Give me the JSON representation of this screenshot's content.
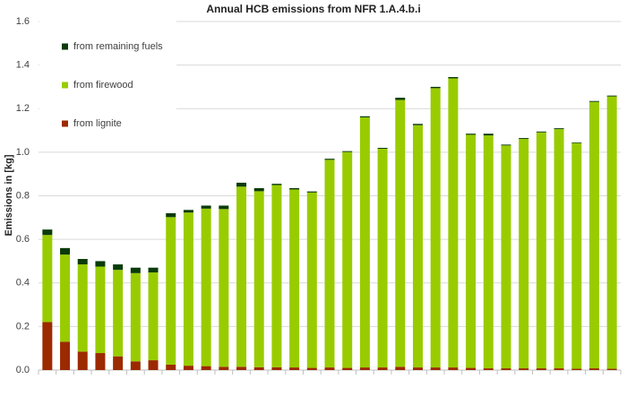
{
  "chart_data": {
    "type": "stacked-bar",
    "title": "Annual HCB emissions from NFR 1.A.4.b.i",
    "y_label": "Emissions in [kg]",
    "categories": [
      null,
      null,
      null,
      null,
      null,
      null,
      null,
      null,
      null,
      null,
      null,
      null,
      null,
      null,
      null,
      null,
      null,
      null,
      null,
      null,
      null,
      null,
      null,
      null,
      null,
      null,
      null,
      null,
      null,
      null,
      null,
      null,
      null
    ],
    "series": [
      {
        "name": "from lignite",
        "color": "#9c2a00",
        "values": [
          0.22,
          0.13,
          0.085,
          0.078,
          0.063,
          0.04,
          0.045,
          0.025,
          0.02,
          0.018,
          0.015,
          0.015,
          0.013,
          0.013,
          0.012,
          0.01,
          0.012,
          0.01,
          0.012,
          0.012,
          0.015,
          0.012,
          0.012,
          0.012,
          0.01,
          0.008,
          0.008,
          0.008,
          0.008,
          0.008,
          0.006,
          0.008,
          0.006
        ]
      },
      {
        "name": "from firewood",
        "color": "#99cc00",
        "values": [
          0.4,
          0.4,
          0.4,
          0.397,
          0.397,
          0.405,
          0.403,
          0.677,
          0.703,
          0.723,
          0.724,
          0.827,
          0.808,
          0.836,
          0.817,
          0.805,
          0.953,
          0.991,
          1.148,
          1.004,
          1.225,
          1.112,
          1.282,
          1.327,
          1.07,
          1.069,
          1.023,
          1.053,
          1.083,
          1.098,
          1.036,
          1.223,
          1.25
        ]
      },
      {
        "name": "from remaining fuels",
        "color": "#0b3b0b",
        "values": [
          0.025,
          0.03,
          0.025,
          0.025,
          0.025,
          0.025,
          0.022,
          0.018,
          0.012,
          0.014,
          0.016,
          0.018,
          0.014,
          0.006,
          0.006,
          0.005,
          0.005,
          0.004,
          0.005,
          0.004,
          0.01,
          0.006,
          0.006,
          0.006,
          0.005,
          0.008,
          0.004,
          0.004,
          0.004,
          0.004,
          0.003,
          0.004,
          0.004
        ]
      }
    ],
    "ylim": [
      0,
      1.6
    ],
    "yticks": [
      {
        "value": 0,
        "label": "0.0"
      },
      0.2,
      0.4,
      0.6,
      0.8,
      {
        "value": 1,
        "label": "1.0"
      },
      1.2,
      1.4,
      1.6
    ],
    "grid": true,
    "legend": "top-left"
  }
}
